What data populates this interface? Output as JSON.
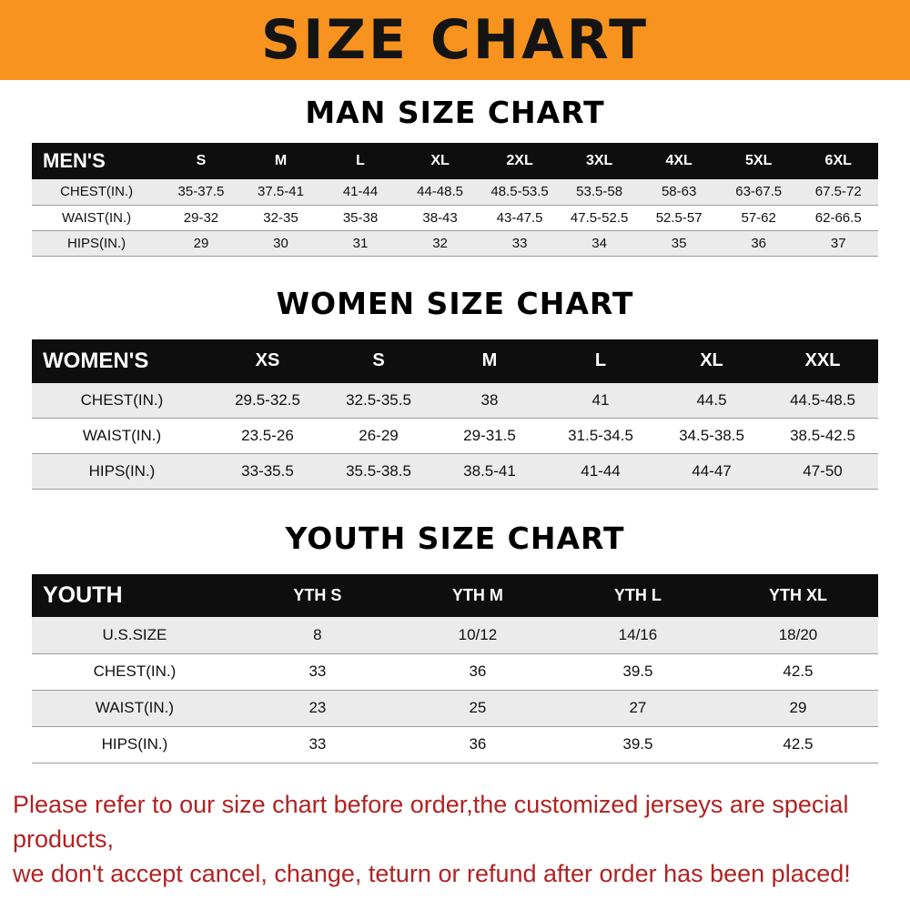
{
  "banner": {
    "title": "SIZE CHART",
    "background": "#f7931e",
    "text_color": "#141414"
  },
  "sections": [
    {
      "heading": "MAN SIZE CHART",
      "table": {
        "header_label": "MEN'S",
        "columns": [
          "S",
          "M",
          "L",
          "XL",
          "2XL",
          "3XL",
          "4XL",
          "5XL",
          "6XL"
        ],
        "rows": [
          {
            "label": "CHEST(IN.)",
            "values": [
              "35-37.5",
              "37.5-41",
              "41-44",
              "44-48.5",
              "48.5-53.5",
              "53.5-58",
              "58-63",
              "63-67.5",
              "67.5-72"
            ]
          },
          {
            "label": "WAIST(IN.)",
            "values": [
              "29-32",
              "32-35",
              "35-38",
              "38-43",
              "43-47.5",
              "47.5-52.5",
              "52.5-57",
              "57-62",
              "62-66.5"
            ]
          },
          {
            "label": "HIPS(IN.)",
            "values": [
              "29",
              "30",
              "31",
              "32",
              "33",
              "34",
              "35",
              "36",
              "37"
            ]
          }
        ]
      }
    },
    {
      "heading": "WOMEN SIZE CHART",
      "table": {
        "header_label": "WOMEN'S",
        "columns": [
          "XS",
          "S",
          "M",
          "L",
          "XL",
          "XXL"
        ],
        "rows": [
          {
            "label": "CHEST(IN.)",
            "values": [
              "29.5-32.5",
              "32.5-35.5",
              "38",
              "41",
              "44.5",
              "44.5-48.5"
            ]
          },
          {
            "label": "WAIST(IN.)",
            "values": [
              "23.5-26",
              "26-29",
              "29-31.5",
              "31.5-34.5",
              "34.5-38.5",
              "38.5-42.5"
            ]
          },
          {
            "label": "HIPS(IN.)",
            "values": [
              "33-35.5",
              "35.5-38.5",
              "38.5-41",
              "41-44",
              "44-47",
              "47-50"
            ]
          }
        ]
      }
    },
    {
      "heading": "YOUTH SIZE CHART",
      "table": {
        "header_label": "YOUTH",
        "columns": [
          "YTH S",
          "YTH M",
          "YTH L",
          "YTH XL"
        ],
        "rows": [
          {
            "label": "U.S.SIZE",
            "values": [
              "8",
              "10/12",
              "14/16",
              "18/20"
            ]
          },
          {
            "label": "CHEST(IN.)",
            "values": [
              "33",
              "36",
              "39.5",
              "42.5"
            ]
          },
          {
            "label": "WAIST(IN.)",
            "values": [
              "23",
              "25",
              "27",
              "29"
            ]
          },
          {
            "label": "HIPS(IN.)",
            "values": [
              "33",
              "36",
              "39.5",
              "42.5"
            ]
          }
        ]
      }
    }
  ],
  "footer": {
    "lines": [
      "Please refer to our size chart before order,the customized jerseys are special products,",
      "we don't accept cancel, change, teturn or refund after order has been placed!"
    ],
    "text_color": "#b22222"
  }
}
